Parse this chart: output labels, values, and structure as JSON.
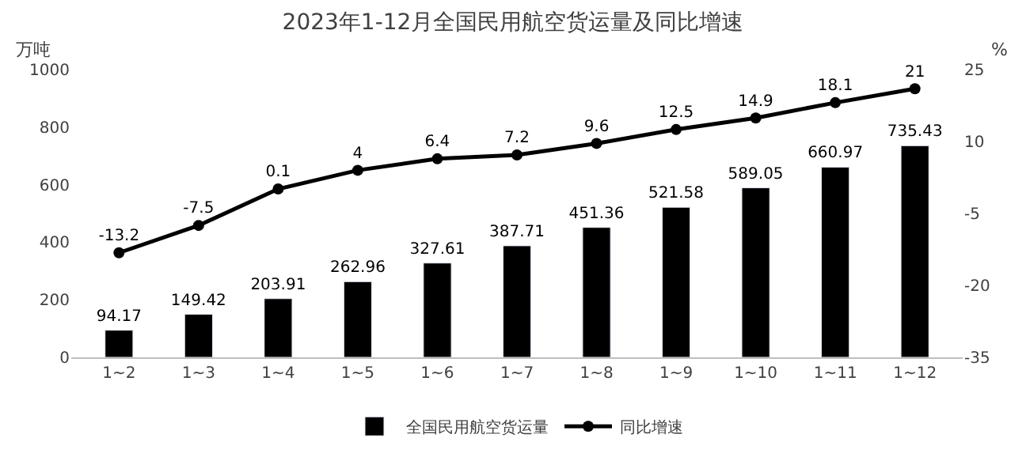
{
  "chart_data": {
    "type": "bar",
    "title": "2023年1-12月全国民用航空货运量及同比增速",
    "ylabel": "万吨",
    "y2label": "%",
    "categories": [
      "1~2",
      "1~3",
      "1~4",
      "1~5",
      "1~6",
      "1~7",
      "1~8",
      "1~9",
      "1~10",
      "1~11",
      "1~12"
    ],
    "series": [
      {
        "name": "全国民用航空货运量",
        "color": "#000000",
        "values": [
          94.17,
          149.42,
          203.91,
          262.96,
          327.61,
          387.71,
          451.36,
          521.58,
          589.05,
          660.97,
          735.43
        ]
      },
      {
        "name": "同比增速",
        "type": "line",
        "axis": "y2",
        "color": "#000000",
        "marker": "circle",
        "values": [
          -13.2,
          -7.5,
          0.1,
          4,
          6.4,
          7.2,
          9.6,
          12.5,
          14.9,
          18.1,
          21
        ]
      }
    ],
    "ylim": [
      0,
      1000
    ],
    "yticks": [
      0,
      200,
      400,
      600,
      800,
      1000
    ],
    "y2lim": [
      -35,
      25
    ],
    "y2ticks": [
      -35,
      -20,
      -5,
      10,
      25
    ],
    "data_labels": true,
    "legend": "bottom"
  }
}
